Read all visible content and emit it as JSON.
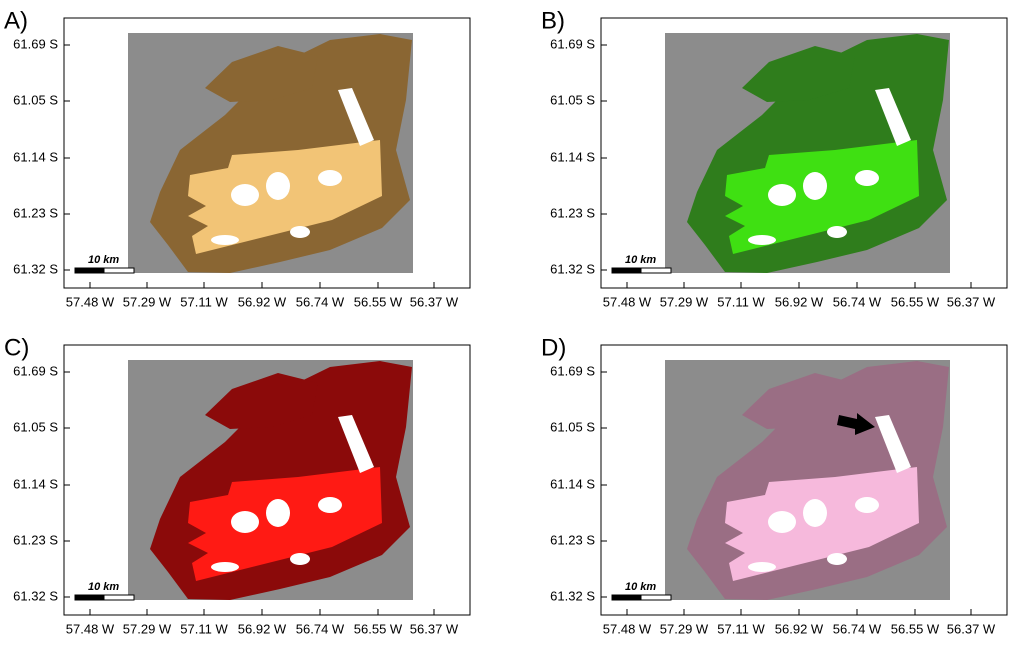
{
  "panels": [
    {
      "label": "A)",
      "dark_color": "#8a6633",
      "light_color": "#f2c476",
      "yticks": [
        "61.69 S",
        "61.05 S",
        "61.14 S",
        "61.23 S",
        "61.32 S"
      ],
      "xticks": [
        "57.48 W",
        "57.29 W",
        "57.11 W",
        "56.92 W",
        "56.74 W",
        "56.55 W",
        "56.37 W"
      ],
      "scale_label": "10 km"
    },
    {
      "label": "B)",
      "dark_color": "#2f7d1c",
      "light_color": "#3fe012",
      "yticks": [
        "61.69 S",
        "61.05 S",
        "61.14 S",
        "61.23 S",
        "61.32 S"
      ],
      "xticks": [
        "57.48 W",
        "57.29 W",
        "57.11 W",
        "56.92 W",
        "56.74 W",
        "56.55 W",
        "56.37 W"
      ],
      "scale_label": "10 km"
    },
    {
      "label": "C)",
      "dark_color": "#8b0a0a",
      "light_color": "#ff1a14",
      "yticks": [
        "61.69 S",
        "61.05 S",
        "61.14 S",
        "61.23 S",
        "61.32 S"
      ],
      "xticks": [
        "57.48 W",
        "57.29 W",
        "57.11 W",
        "56.92 W",
        "56.74 W",
        "56.55 W",
        "56.37 W"
      ],
      "scale_label": "10 km"
    },
    {
      "label": "D)",
      "dark_color": "#9a6e84",
      "light_color": "#f6b9dc",
      "yticks": [
        "61.69 S",
        "61.05 S",
        "61.14 S",
        "61.23 S",
        "61.32 S"
      ],
      "xticks": [
        "57.48 W",
        "57.29 W",
        "57.11 W",
        "56.92 W",
        "56.74 W",
        "56.55 W",
        "56.37 W"
      ],
      "scale_label": "10 km"
    }
  ]
}
